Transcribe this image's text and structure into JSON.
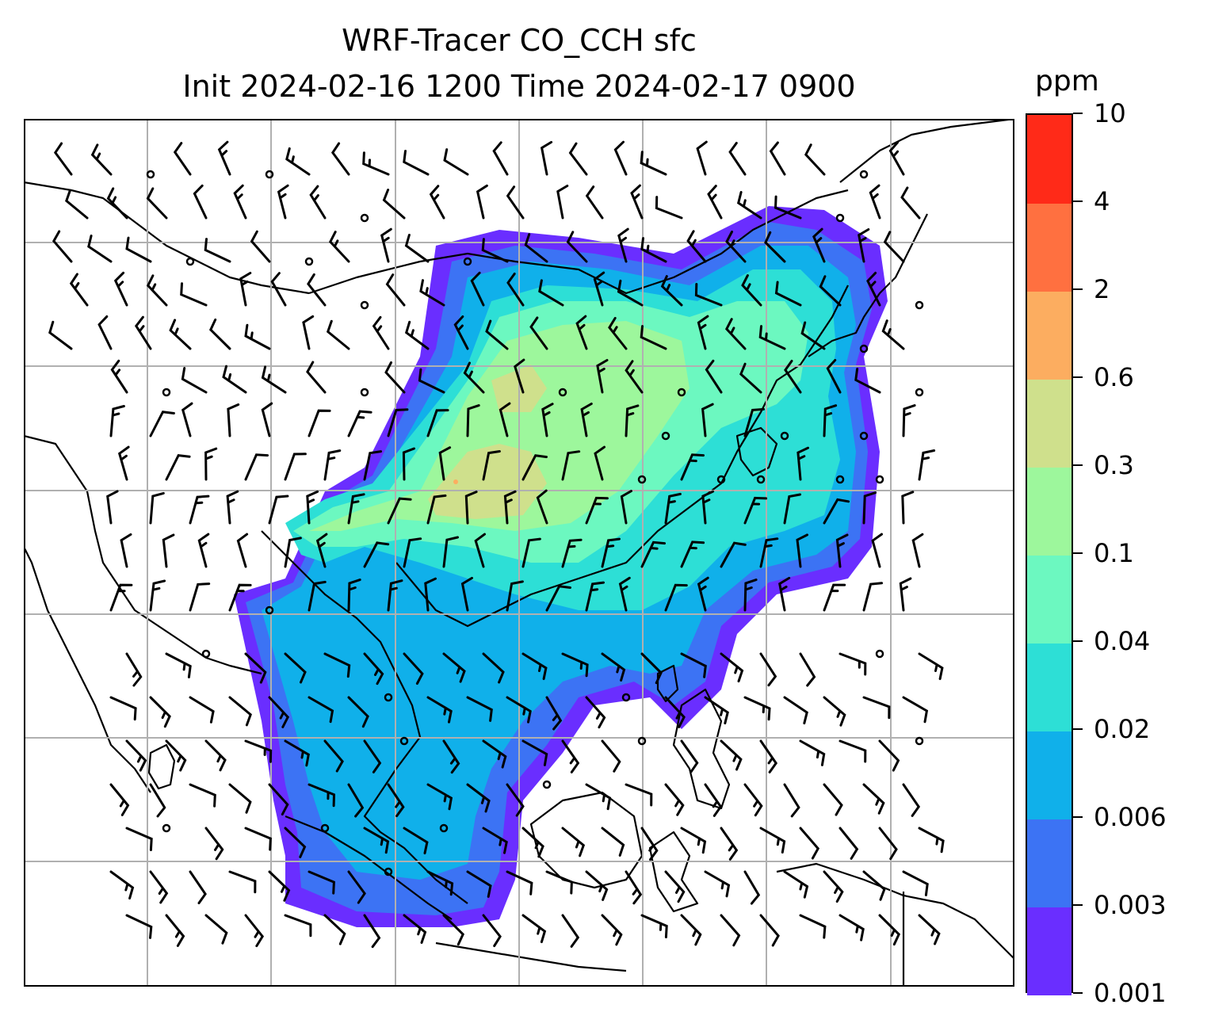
{
  "title_line1": "WRF-Tracer CO_CCH sfc",
  "title_line2": "Init 2024-02-16 1200 Time 2024-02-17 0900",
  "colorbar": {
    "unit": "ppm",
    "levels": [
      "0.001",
      "0.003",
      "0.006",
      "0.02",
      "0.04",
      "0.1",
      "0.3",
      "0.6",
      "2",
      "4",
      "10"
    ],
    "colors": [
      "#6a2eff",
      "#3c73f4",
      "#10b0ea",
      "#2ddfd6",
      "#6cf8c0",
      "#9df79c",
      "#cfe08c",
      "#fcad60",
      "#ff7040",
      "#ff2a18"
    ]
  },
  "map": {
    "land_outline_color": "#000000",
    "gridline_color": "#b0b0b0",
    "wind_barb_color": "#000000"
  }
}
